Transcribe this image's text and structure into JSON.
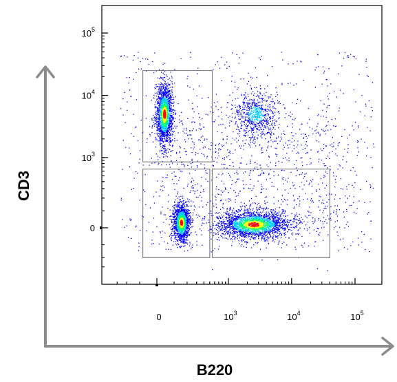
{
  "chart_data": {
    "type": "scatter",
    "title": "",
    "xlabel": "B220",
    "ylabel": "CD3",
    "x_scale": "biexponential",
    "y_scale": "biexponential",
    "x_ticks": [
      {
        "value": 0,
        "base": "0",
        "exp": ""
      },
      {
        "value": 1000,
        "base": "10",
        "exp": "3"
      },
      {
        "value": 10000,
        "base": "10",
        "exp": "4"
      },
      {
        "value": 100000,
        "base": "10",
        "exp": "5"
      }
    ],
    "y_ticks": [
      {
        "value": 0,
        "base": "0",
        "exp": ""
      },
      {
        "value": 1000,
        "base": "10",
        "exp": "3"
      },
      {
        "value": 10000,
        "base": "10",
        "exp": "4"
      },
      {
        "value": 100000,
        "base": "10",
        "exp": "5"
      }
    ],
    "populations": [
      {
        "name": "CD3+ B220-",
        "center": {
          "x": 40,
          "y": 5000
        },
        "relative_density": "high"
      },
      {
        "name": "CD3- B220-",
        "center": {
          "x": 150,
          "y": 30
        },
        "relative_density": "high"
      },
      {
        "name": "CD3- B220+",
        "center": {
          "x": 2500,
          "y": 20
        },
        "relative_density": "very high"
      },
      {
        "name": "CD3+ B220+",
        "center": {
          "x": 2700,
          "y": 5000
        },
        "relative_density": "medium"
      }
    ],
    "gates": [
      {
        "name": "gate-cd3-positive",
        "x_range": [
          -80,
          550
        ],
        "y_range": [
          850,
          25000
        ]
      },
      {
        "name": "gate-double-negative",
        "x_range": [
          -80,
          500
        ],
        "y_range": [
          -200,
          650
        ]
      },
      {
        "name": "gate-b220-positive",
        "x_range": [
          550,
          40000
        ],
        "y_range": [
          -200,
          650
        ]
      }
    ],
    "colormap": [
      "#0000ff",
      "#00ccff",
      "#00ff66",
      "#ffff00",
      "#ff0000"
    ],
    "gate_color": "#808080",
    "grid": false
  }
}
